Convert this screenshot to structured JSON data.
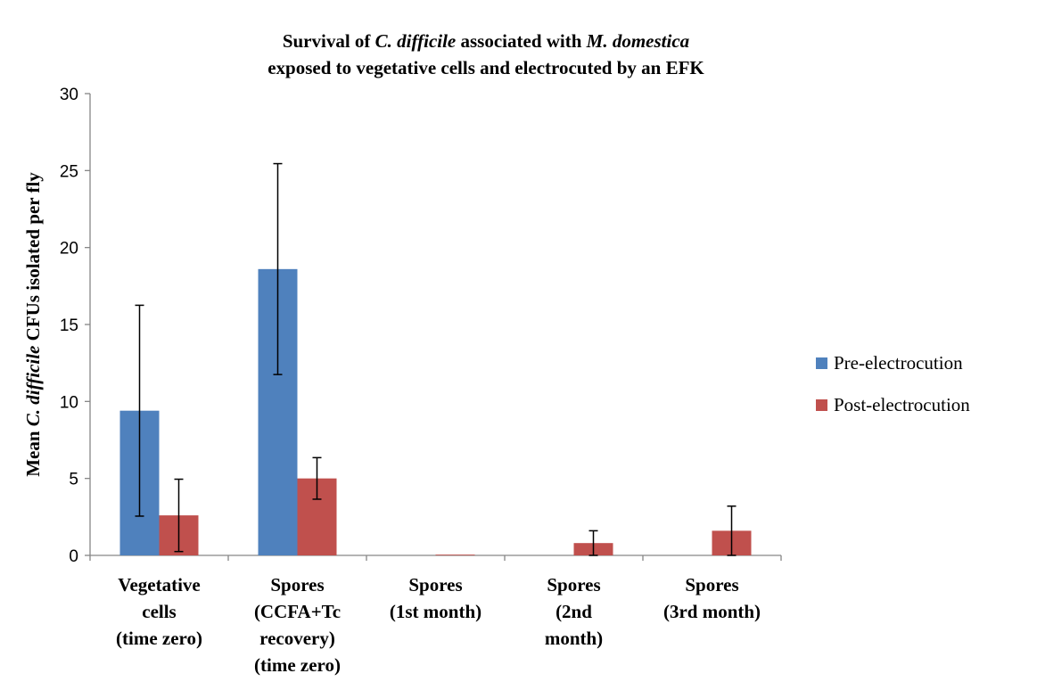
{
  "chart_data": {
    "type": "bar",
    "title_lines": [
      [
        {
          "text": "Survival of ",
          "italic": false
        },
        {
          "text": "C. difficile",
          "italic": true
        },
        {
          "text": " associated with ",
          "italic": false
        },
        {
          "text": "M. domestica",
          "italic": true
        }
      ],
      [
        {
          "text": "exposed to vegetative cells and electrocuted by an EFK",
          "italic": false
        }
      ]
    ],
    "ylabel_parts": [
      {
        "text": "Mean ",
        "italic": false
      },
      {
        "text": "C. difficile",
        "italic": true
      },
      {
        "text": " CFUs isolated per fly",
        "italic": false
      }
    ],
    "ylim": [
      0,
      30
    ],
    "yticks": [
      "0",
      "5",
      "10",
      "15",
      "20",
      "25",
      "30"
    ],
    "categories": [
      [
        "Vegetative",
        "cells",
        "(time zero)"
      ],
      [
        "Spores",
        "(CCFA+Tc",
        "recovery)",
        "(time zero)"
      ],
      [
        "Spores",
        "(1st month)"
      ],
      [
        "Spores",
        "(2nd",
        "month)"
      ],
      [
        "Spores",
        "(3rd month)"
      ]
    ],
    "series": [
      {
        "name": "Pre-electrocution",
        "color": "#4F81BD",
        "values": [
          9.4,
          18.6,
          0,
          0,
          0
        ],
        "errors": [
          6.85,
          6.85,
          0,
          0,
          0
        ]
      },
      {
        "name": "Post-electrocution",
        "color": "#C0504D",
        "values": [
          2.6,
          5.0,
          0.05,
          0.8,
          1.6
        ],
        "errors": [
          2.35,
          1.35,
          0,
          0.8,
          1.6
        ]
      }
    ],
    "legend_position": "right",
    "grid": false
  }
}
